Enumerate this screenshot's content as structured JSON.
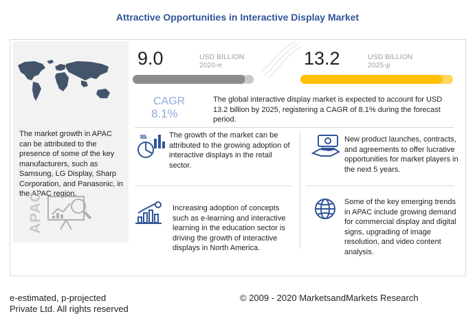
{
  "title": "Attractive Opportunities in Interactive Display Market",
  "metric_2020": {
    "value": "9.0",
    "unit": "USD BILLION",
    "year": "2020-e",
    "fill_fraction": 0.93
  },
  "metric_2025": {
    "value": "13.2",
    "unit": "USD BILLION",
    "year": "2025-p",
    "fill_fraction": 0.93
  },
  "cagr": {
    "label": "CAGR",
    "value": "8.1%",
    "text": "The global interactive display market is expected to account for USD 13.2 billion by 2025, registering a CAGR of 8.1% during the forecast period."
  },
  "apac": {
    "text": "The market growth in APAC can be attributed to the presence of some of the key manufacturers, such as Samsung, LG Display, Sharp Corporation, and Panasonic, in the APAC region.",
    "label": "APAC"
  },
  "cards": {
    "retail": "The growth of the market can be attributed to the growing adoption of interactive displays in the retail sector.",
    "launches": "New product launches, contracts, and agreements to offer lucrative opportunities for market players in the next 5 years.",
    "education": "Increasing adoption of concepts such as e-learning and interactive learning in the education sector is driving the growth of interactive displays in North America.",
    "trends": "Some of the key emerging trends in APAC include growing demand for commercial display and digital signs, upgrading of image resolution, and video content analysis."
  },
  "footer": {
    "legend": "e-estimated, p-projected",
    "rights": "Private Ltd. All rights reserved",
    "copyright": "© 2009 - 2020 MarketsandMarkets Research"
  },
  "colors": {
    "title": "#2f5597",
    "cagr": "#8eaadb",
    "bar_2020": "#8c8c8c",
    "bar_2025": "#ffc000"
  },
  "icons": [
    "world-map-icon",
    "analytics-board-icon",
    "retail-chart-icon",
    "money-hand-icon",
    "growth-bar-chart-icon",
    "globe-icon"
  ]
}
